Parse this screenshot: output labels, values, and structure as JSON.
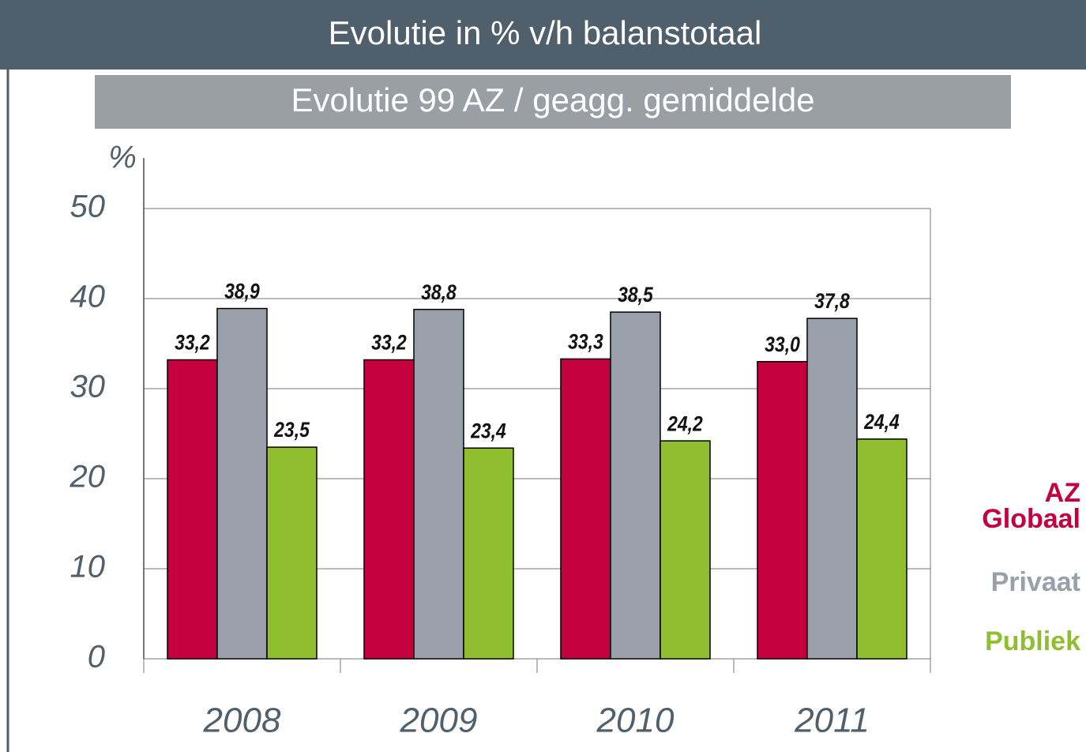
{
  "chart_data": {
    "type": "bar",
    "title": "Evolutie in % v/h balanstotaal",
    "subtitle": "Evolutie 99 AZ / geagg. gemiddelde",
    "y_label": "%",
    "categories": [
      "2008",
      "2009",
      "2010",
      "2011"
    ],
    "series": [
      {
        "name": "AZ Globaal",
        "color": "#c4003f",
        "values": [
          33.2,
          33.2,
          33.3,
          33.0
        ],
        "value_labels": [
          "33,2",
          "33,2",
          "33,3",
          "33,0"
        ]
      },
      {
        "name": "Privaat",
        "color": "#9aa0aa",
        "values": [
          38.9,
          38.8,
          38.5,
          37.8
        ],
        "value_labels": [
          "38,9",
          "38,8",
          "38,5",
          "37,8"
        ]
      },
      {
        "name": "Publiek",
        "color": "#8fbf2f",
        "values": [
          23.5,
          23.4,
          24.2,
          24.4
        ],
        "value_labels": [
          "23,5",
          "23,4",
          "24,2",
          "24,4"
        ]
      }
    ],
    "ylim": [
      0,
      50
    ],
    "yticks": [
      0,
      10,
      20,
      30,
      40,
      50
    ],
    "grid": true,
    "legend": "right"
  }
}
